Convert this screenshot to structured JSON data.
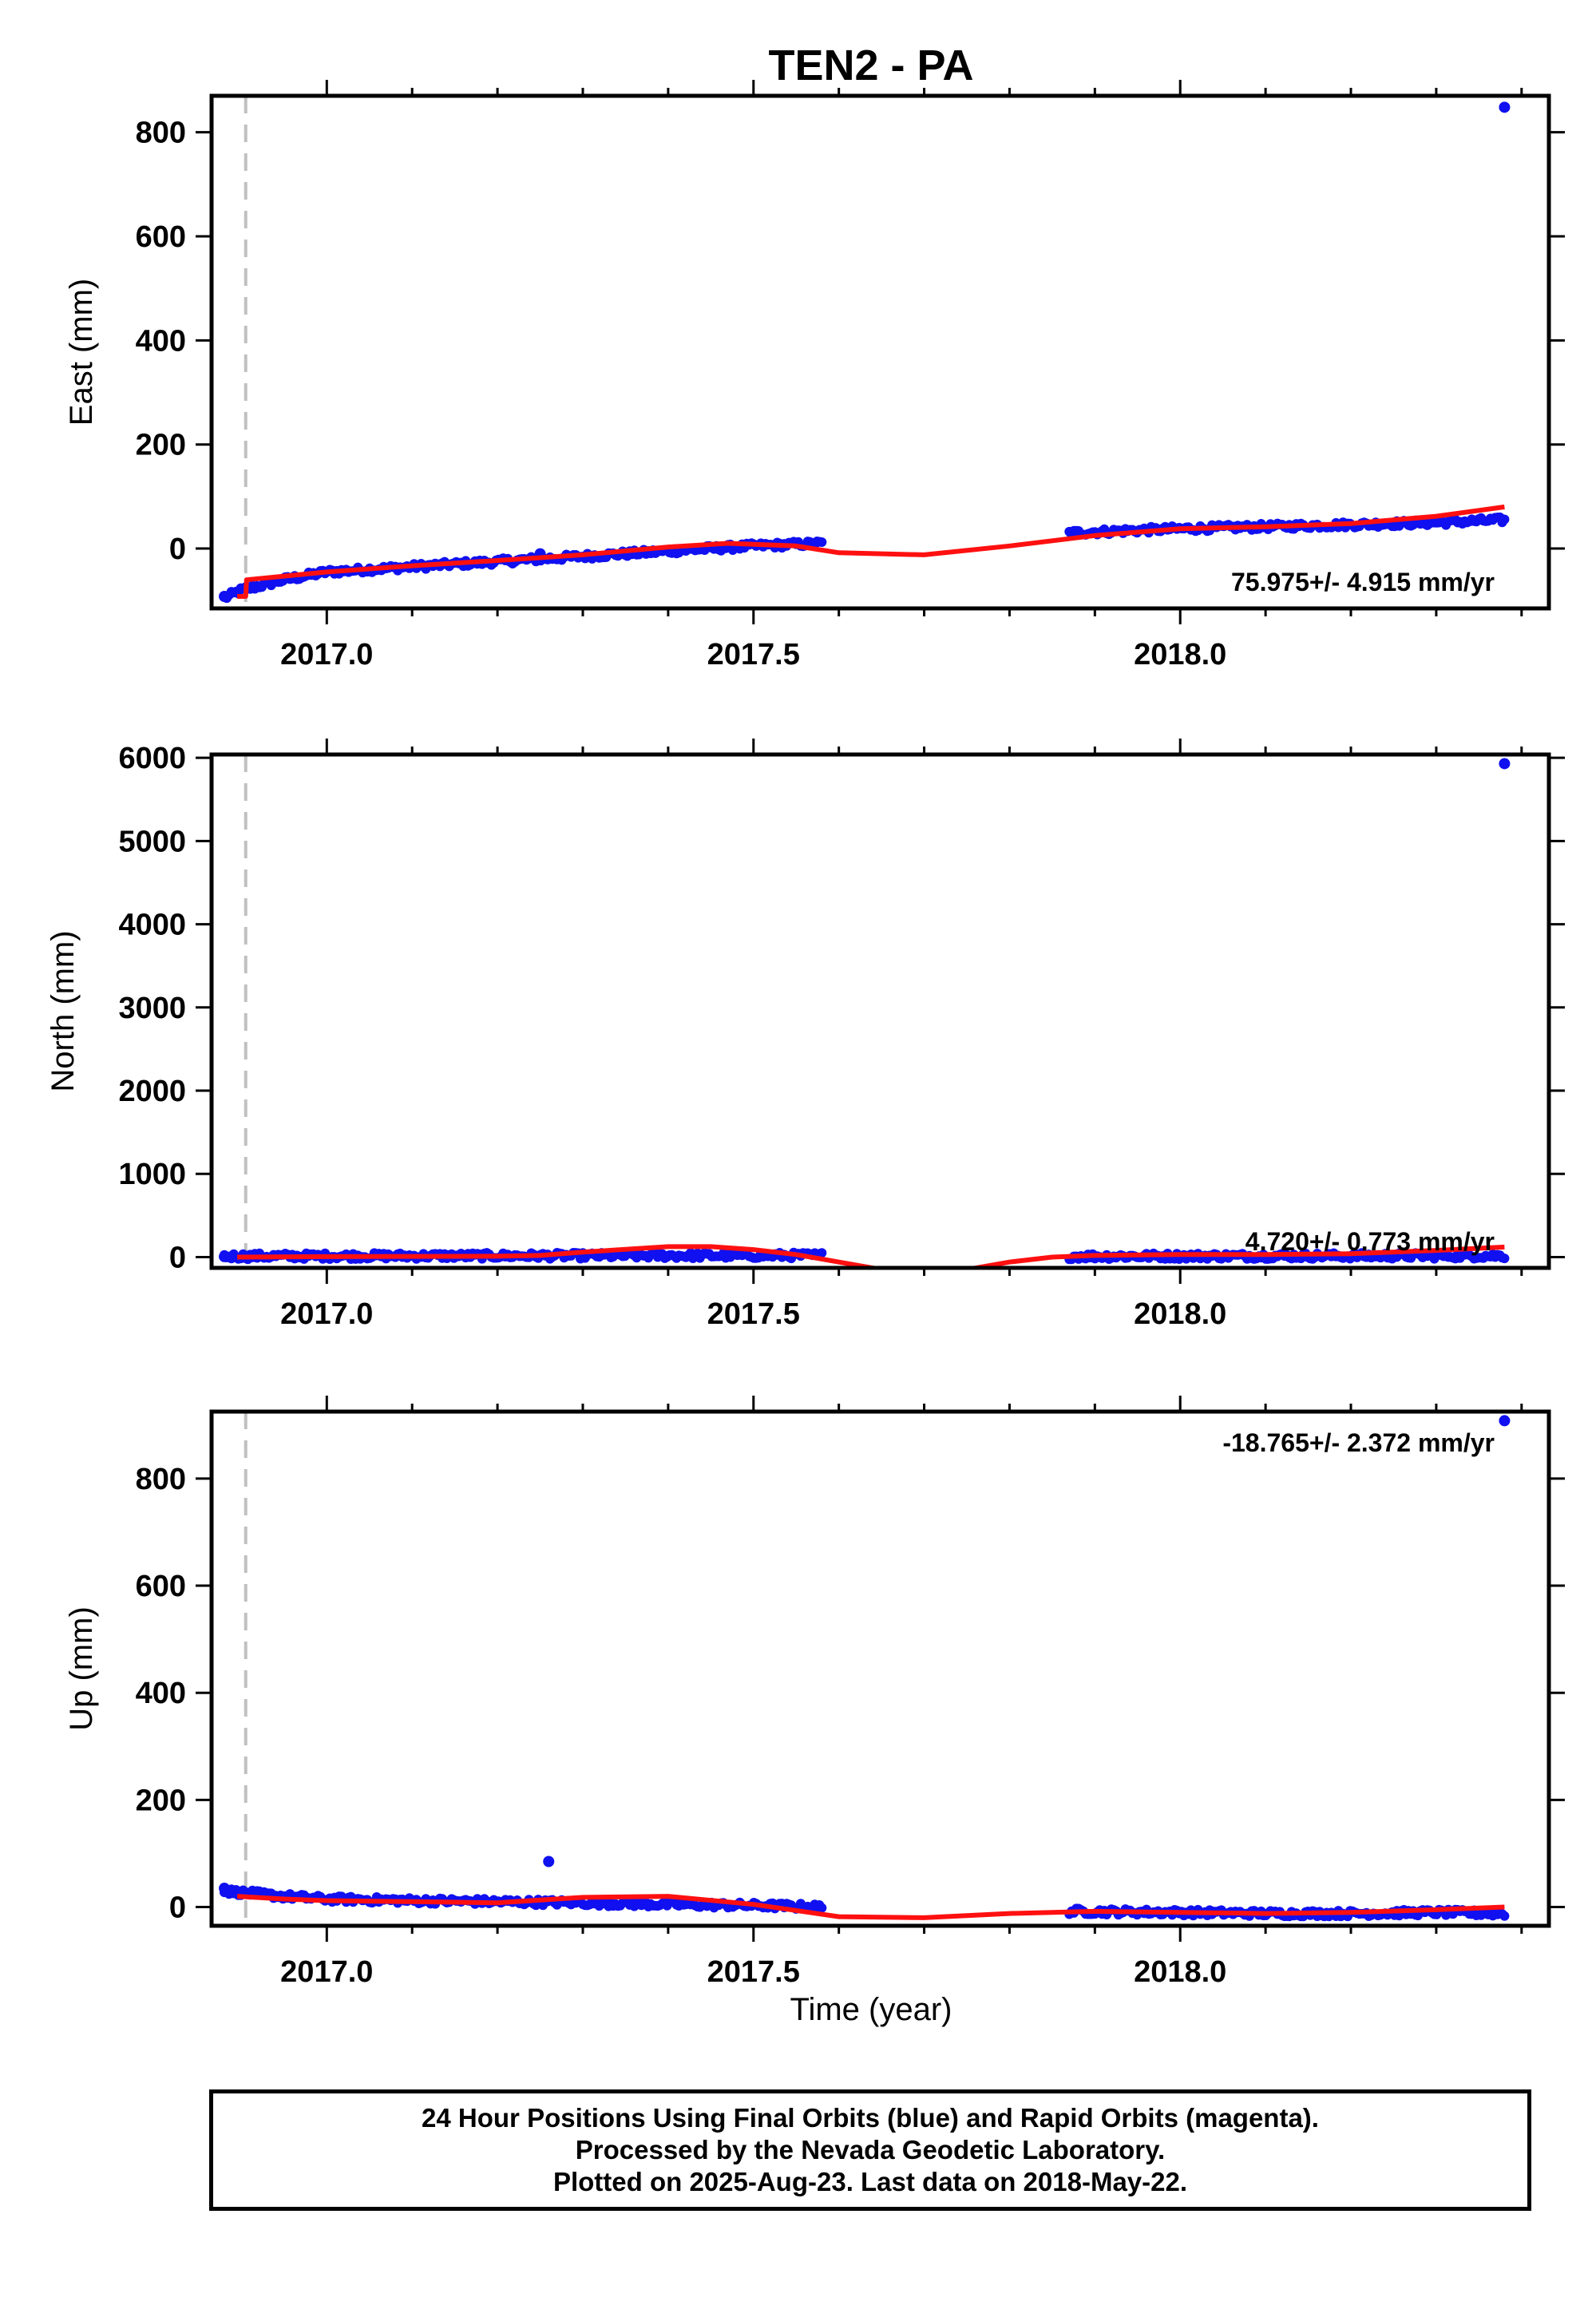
{
  "chart_data": {
    "type": "scatter",
    "title": "TEN2 - PA",
    "xlabel": "Time (year)",
    "xlim": [
      2016.865,
      2018.432
    ],
    "x_ticks": [
      "2017.0",
      "2017.5",
      "2018.0"
    ],
    "x_tick_values": [
      2017.0,
      2017.5,
      2018.0
    ],
    "reference_line_x": 2016.905,
    "colors": {
      "data": "#1010f0",
      "fit": "#ff1010",
      "refline": "#c0c0c0",
      "axes": "#000000"
    },
    "panels": [
      {
        "name": "east",
        "ylabel": "East (mm)",
        "ylim": [
          -115,
          870
        ],
        "y_ticks": [
          "0",
          "200",
          "400",
          "600",
          "800"
        ],
        "y_tick_values": [
          0,
          200,
          400,
          600,
          800
        ],
        "rate_label": "75.975+/- 4.915 mm/yr",
        "rate_position": "bottom-right",
        "data_segments": [
          {
            "x": [
              2016.88,
              2016.9,
              2016.95,
              2017.0,
              2017.1,
              2017.2,
              2017.3,
              2017.4,
              2017.5,
              2017.58
            ],
            "y": [
              -95,
              -80,
              -60,
              -45,
              -35,
              -25,
              -15,
              -5,
              5,
              10
            ]
          },
          {
            "x": [
              2017.87,
              2017.95,
              2018.0,
              2018.1,
              2018.2,
              2018.3,
              2018.38
            ],
            "y": [
              30,
              35,
              38,
              42,
              46,
              50,
              55
            ]
          }
        ],
        "outliers": {
          "x": [
            2016.88,
            2017.25,
            2018.38
          ],
          "y": [
            -92,
            -10,
            848
          ]
        },
        "fit": {
          "x": [
            2016.895,
            2016.905,
            2016.906,
            2017.0,
            2017.1,
            2017.2,
            2017.3,
            2017.4,
            2017.47,
            2017.55,
            2017.6,
            2017.7,
            2017.8,
            2017.9,
            2018.0,
            2018.1,
            2018.2,
            2018.3,
            2018.38
          ],
          "y": [
            -92,
            -92,
            -60,
            -45,
            -33,
            -23,
            -12,
            3,
            10,
            5,
            -8,
            -12,
            5,
            25,
            38,
            42,
            48,
            62,
            80
          ]
        }
      },
      {
        "name": "north",
        "ylabel": "North (mm)",
        "ylim": [
          -130,
          6040
        ],
        "y_ticks": [
          "0",
          "1000",
          "2000",
          "3000",
          "4000",
          "5000",
          "6000"
        ],
        "y_tick_values": [
          0,
          1000,
          2000,
          3000,
          4000,
          5000,
          6000
        ],
        "rate_label": "4.720+/- 0.773 mm/yr",
        "rate_position": "bottom-right",
        "data_segments": [
          {
            "x": [
              2016.88,
              2017.0,
              2017.2,
              2017.4,
              2017.58
            ],
            "y": [
              10,
              12,
              15,
              18,
              20
            ]
          },
          {
            "x": [
              2017.87,
              2018.0,
              2018.2,
              2018.38
            ],
            "y": [
              10,
              12,
              14,
              16
            ]
          }
        ],
        "outliers": {
          "x": [
            2016.88,
            2018.38
          ],
          "y": [
            5,
            5930
          ]
        },
        "fit": {
          "x": [
            2016.895,
            2017.0,
            2017.1,
            2017.2,
            2017.25,
            2017.3,
            2017.4,
            2017.45,
            2017.5,
            2017.55,
            2017.6,
            2017.65,
            2017.7,
            2017.75,
            2017.8,
            2017.85,
            2017.9,
            2018.0,
            2018.1,
            2018.2,
            2018.3,
            2018.38
          ],
          "y": [
            0,
            5,
            8,
            10,
            20,
            60,
            125,
            125,
            90,
            30,
            -60,
            -150,
            -180,
            -150,
            -60,
            0,
            20,
            30,
            30,
            40,
            80,
            120
          ]
        }
      },
      {
        "name": "up",
        "ylabel": "Up (mm)",
        "ylim": [
          -35,
          925
        ],
        "y_ticks": [
          "0",
          "200",
          "400",
          "600",
          "800"
        ],
        "y_tick_values": [
          0,
          200,
          400,
          600,
          800
        ],
        "rate_label": "-18.765+/- 2.372 mm/yr",
        "rate_position": "top-right",
        "data_segments": [
          {
            "x": [
              2016.88,
              2016.95,
              2017.0,
              2017.1,
              2017.2,
              2017.3,
              2017.4,
              2017.5,
              2017.58
            ],
            "y": [
              30,
              20,
              15,
              12,
              10,
              8,
              5,
              3,
              0
            ]
          },
          {
            "x": [
              2017.87,
              2018.0,
              2018.1,
              2018.2,
              2018.3,
              2018.38
            ],
            "y": [
              -8,
              -10,
              -12,
              -12,
              -10,
              -12
            ]
          }
        ],
        "outliers": {
          "x": [
            2016.88,
            2017.26,
            2018.38
          ],
          "y": [
            35,
            85,
            908
          ]
        },
        "fit": {
          "x": [
            2016.895,
            2016.95,
            2017.0,
            2017.1,
            2017.2,
            2017.3,
            2017.4,
            2017.5,
            2017.6,
            2017.7,
            2017.8,
            2017.9,
            2018.0,
            2018.1,
            2018.2,
            2018.3,
            2018.38
          ],
          "y": [
            20,
            15,
            12,
            10,
            8,
            18,
            20,
            5,
            -18,
            -20,
            -12,
            -8,
            -10,
            -12,
            -10,
            -5,
            0
          ]
        }
      }
    ],
    "footer": [
      "24 Hour Positions Using Final Orbits (blue) and Rapid Orbits (magenta).",
      "Processed by the Nevada Geodetic Laboratory.",
      "Plotted on 2025-Aug-23. Last data on 2018-May-22."
    ]
  }
}
